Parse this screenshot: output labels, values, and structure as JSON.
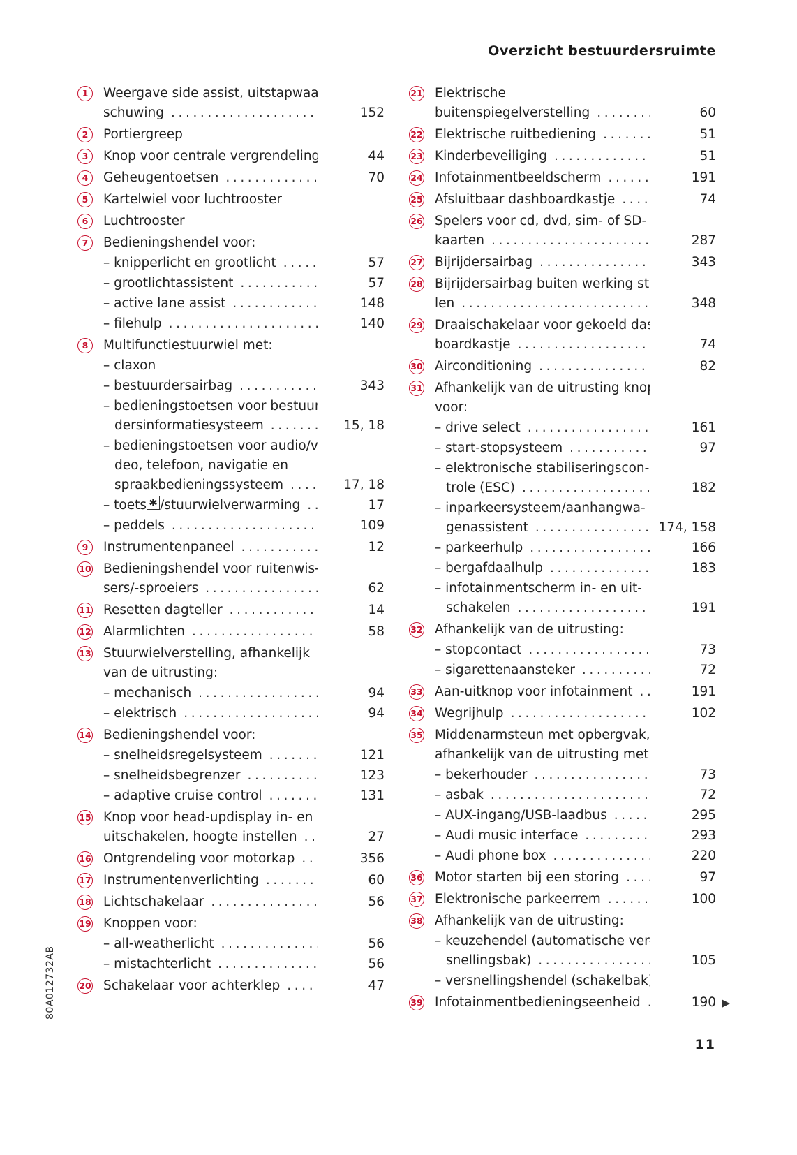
{
  "header": {
    "title": "Overzicht bestuurdersruimte"
  },
  "side_code": "80A012732AB",
  "page_number": "11",
  "accent_color": "#c8102e",
  "left": [
    {
      "num": "1",
      "lines": [
        "Weergave side assist, uitstapwaar-",
        "schuwing"
      ],
      "page": "152"
    },
    {
      "num": "2",
      "lines": [
        "Portiergreep"
      ],
      "page": ""
    },
    {
      "num": "3",
      "lines": [
        "Knop voor centrale vergrendeling"
      ],
      "page": "44",
      "nodots": true
    },
    {
      "num": "4",
      "lines": [
        "Geheugentoetsen"
      ],
      "page": "70"
    },
    {
      "num": "5",
      "lines": [
        "Kartelwiel voor luchtrooster"
      ],
      "page": ""
    },
    {
      "num": "6",
      "lines": [
        "Luchtrooster"
      ],
      "page": ""
    },
    {
      "num": "7",
      "lines": [
        "Bedieningshendel voor:"
      ],
      "page": ""
    },
    {
      "sub": true,
      "lines": [
        "– knipperlicht en grootlicht"
      ],
      "page": "57"
    },
    {
      "sub": true,
      "lines": [
        "– grootlichtassistent"
      ],
      "page": "57"
    },
    {
      "sub": true,
      "lines": [
        "– active lane assist"
      ],
      "page": "148"
    },
    {
      "sub": true,
      "lines": [
        "– filehulp"
      ],
      "page": "140"
    },
    {
      "num": "8",
      "lines": [
        "Multifunctiestuurwiel met:"
      ],
      "page": ""
    },
    {
      "sub": true,
      "lines": [
        "– claxon"
      ],
      "page": ""
    },
    {
      "sub": true,
      "lines": [
        "– bestuurdersairbag"
      ],
      "page": "343"
    },
    {
      "sub": true,
      "lines": [
        "– bedieningstoetsen voor bestuur-",
        "dersinformatiesysteem"
      ],
      "page": "15, 18"
    },
    {
      "sub": true,
      "lines": [
        "– bedieningstoetsen voor audio/vi-",
        "deo, telefoon, navigatie en",
        "spraakbedieningssysteem"
      ],
      "page": "17, 18"
    },
    {
      "sub": true,
      "lines": [
        "– toets ",
        "/stuurwielverwarming"
      ],
      "icon": "heated-steering-key-icon",
      "icon_glyph": "✱",
      "page": "17",
      "inline_icon": true
    },
    {
      "sub": true,
      "lines": [
        "– peddels"
      ],
      "page": "109"
    },
    {
      "num": "9",
      "lines": [
        "Instrumentenpaneel"
      ],
      "page": "12"
    },
    {
      "num": "10",
      "lines": [
        "Bedieningshendel voor ruitenwis-",
        "sers/-sproeiers"
      ],
      "page": "62"
    },
    {
      "num": "11",
      "lines": [
        "Resetten dagteller"
      ],
      "page": "14"
    },
    {
      "num": "12",
      "lines": [
        "Alarmlichten"
      ],
      "page": "58"
    },
    {
      "num": "13",
      "lines": [
        "Stuurwielverstelling, afhankelijk",
        "van de uitrusting:"
      ],
      "page": ""
    },
    {
      "sub": true,
      "lines": [
        "– mechanisch"
      ],
      "page": "94"
    },
    {
      "sub": true,
      "lines": [
        "– elektrisch"
      ],
      "page": "94"
    },
    {
      "num": "14",
      "lines": [
        "Bedieningshendel voor:"
      ],
      "page": ""
    },
    {
      "sub": true,
      "lines": [
        "– snelheidsregelsysteem"
      ],
      "page": "121"
    },
    {
      "sub": true,
      "lines": [
        "– snelheidsbegrenzer"
      ],
      "page": "123"
    },
    {
      "sub": true,
      "lines": [
        "– adaptive cruise control"
      ],
      "page": "131"
    },
    {
      "num": "15",
      "lines": [
        "Knop voor head-updisplay in- en",
        "uitschakelen, hoogte instellen"
      ],
      "page": "27"
    },
    {
      "num": "16",
      "lines": [
        "Ontgrendeling voor motorkap"
      ],
      "page": "356"
    },
    {
      "num": "17",
      "lines": [
        "Instrumentenverlichting"
      ],
      "page": "60"
    },
    {
      "num": "18",
      "lines": [
        "Lichtschakelaar"
      ],
      "page": "56"
    },
    {
      "num": "19",
      "lines": [
        "Knoppen voor:"
      ],
      "page": ""
    },
    {
      "sub": true,
      "lines": [
        "– all-weatherlicht"
      ],
      "page": "56"
    },
    {
      "sub": true,
      "lines": [
        "– mistachterlicht"
      ],
      "page": "56"
    },
    {
      "num": "20",
      "lines": [
        "Schakelaar voor achterklep"
      ],
      "page": "47"
    }
  ],
  "right": [
    {
      "num": "21",
      "lines": [
        "Elektrische",
        "buitenspiegelverstelling"
      ],
      "page": "60"
    },
    {
      "num": "22",
      "lines": [
        "Elektrische ruitbediening"
      ],
      "page": "51"
    },
    {
      "num": "23",
      "lines": [
        "Kinderbeveiliging"
      ],
      "page": "51"
    },
    {
      "num": "24",
      "lines": [
        "Infotainmentbeeldscherm"
      ],
      "page": "191"
    },
    {
      "num": "25",
      "lines": [
        "Afsluitbaar dashboardkastje"
      ],
      "page": "74"
    },
    {
      "num": "26",
      "lines": [
        "Spelers voor cd, dvd, sim- of SD-",
        "kaarten"
      ],
      "page": "287"
    },
    {
      "num": "27",
      "lines": [
        "Bijrijdersairbag"
      ],
      "page": "343"
    },
    {
      "num": "28",
      "lines": [
        "Bijrijdersairbag buiten werking stel-",
        "len"
      ],
      "page": "348"
    },
    {
      "num": "29",
      "lines": [
        "Draaischakelaar voor gekoeld dash-",
        "boardkastje"
      ],
      "page": "74"
    },
    {
      "num": "30",
      "lines": [
        "Airconditioning"
      ],
      "page": "82"
    },
    {
      "num": "31",
      "lines": [
        "Afhankelijk van de uitrusting knop",
        "voor:"
      ],
      "page": ""
    },
    {
      "sub": true,
      "lines": [
        "– drive select"
      ],
      "page": "161"
    },
    {
      "sub": true,
      "lines": [
        "– start-stopsysteem"
      ],
      "page": "97"
    },
    {
      "sub": true,
      "lines": [
        "– elektronische stabiliseringscon-",
        "trole (ESC)"
      ],
      "page": "182"
    },
    {
      "sub": true,
      "lines": [
        "– inparkeersysteem/aanhangwa-",
        "genassistent"
      ],
      "page": "174, 158"
    },
    {
      "sub": true,
      "lines": [
        "– parkeerhulp"
      ],
      "page": "166"
    },
    {
      "sub": true,
      "lines": [
        "– bergafdaalhulp"
      ],
      "page": "183"
    },
    {
      "sub": true,
      "lines": [
        "– infotainmentscherm in- en uit-",
        "schakelen"
      ],
      "page": "191"
    },
    {
      "num": "32",
      "lines": [
        "Afhankelijk van de uitrusting:"
      ],
      "page": ""
    },
    {
      "sub": true,
      "lines": [
        "– stopcontact"
      ],
      "page": "73"
    },
    {
      "sub": true,
      "lines": [
        "– sigarettenaansteker"
      ],
      "page": "72"
    },
    {
      "num": "33",
      "lines": [
        "Aan-uitknop voor infotainment"
      ],
      "page": "191"
    },
    {
      "num": "34",
      "lines": [
        "Wegrijhulp"
      ],
      "page": "102"
    },
    {
      "num": "35",
      "lines": [
        "Middenarmsteun met opbergvak,",
        "afhankelijk van de uitrusting met:"
      ],
      "page": ""
    },
    {
      "sub": true,
      "lines": [
        "– bekerhouder"
      ],
      "page": "73"
    },
    {
      "sub": true,
      "lines": [
        "– asbak"
      ],
      "page": "72"
    },
    {
      "sub": true,
      "lines": [
        "– AUX-ingang/USB-laadbus"
      ],
      "page": "295"
    },
    {
      "sub": true,
      "lines": [
        "– Audi music interface"
      ],
      "page": "293"
    },
    {
      "sub": true,
      "lines": [
        "– Audi phone box"
      ],
      "page": "220"
    },
    {
      "num": "36",
      "lines": [
        "Motor starten bij een storing"
      ],
      "page": "97"
    },
    {
      "num": "37",
      "lines": [
        "Elektronische parkeerrem"
      ],
      "page": "100"
    },
    {
      "num": "38",
      "lines": [
        "Afhankelijk van de uitrusting:"
      ],
      "page": ""
    },
    {
      "sub": true,
      "lines": [
        "– keuzehendel (automatische ver-",
        "snellingsbak)"
      ],
      "page": "105"
    },
    {
      "sub": true,
      "lines": [
        "– versnellingshendel (schakelbak)"
      ],
      "page": ""
    },
    {
      "num": "39",
      "lines": [
        "Infotainmentbedieningseenheid"
      ],
      "page": "190",
      "continued": true,
      "continued_icon": "continue-arrow-icon"
    }
  ]
}
